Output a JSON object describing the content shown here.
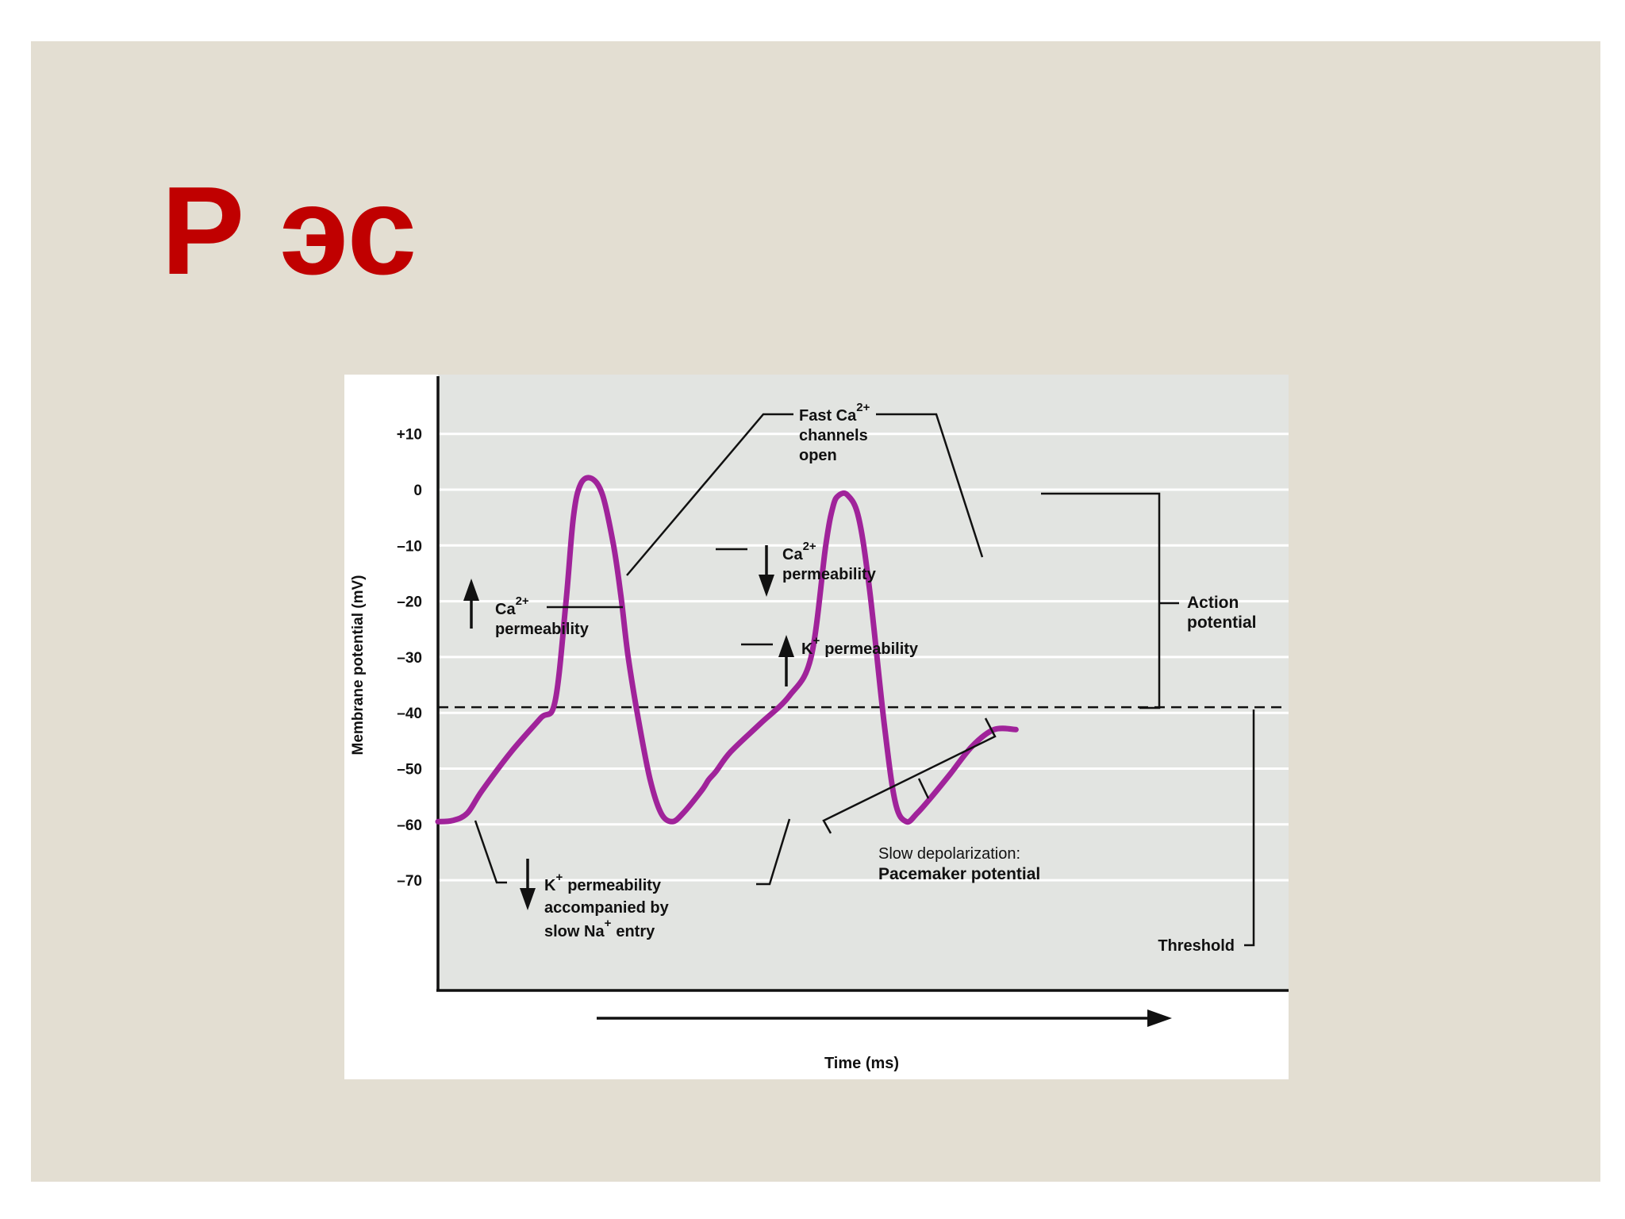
{
  "slide": {
    "title": "Р эс",
    "background": "#e3ded2",
    "title_color": "#c00000"
  },
  "chart_data": {
    "type": "line",
    "ylabel": "Membrane potential (mV)",
    "xlabel": "Time (ms)",
    "ylim": [
      -90,
      22
    ],
    "xlim": [
      0,
      1000
    ],
    "yticks": [
      {
        "value": 10,
        "label": "+10"
      },
      {
        "value": 0,
        "label": "0"
      },
      {
        "value": -10,
        "label": "–10"
      },
      {
        "value": -20,
        "label": "–20"
      },
      {
        "value": -30,
        "label": "–30"
      },
      {
        "value": -40,
        "label": "–40"
      },
      {
        "value": -50,
        "label": "–50"
      },
      {
        "value": -60,
        "label": "–60"
      },
      {
        "value": -70,
        "label": "–70"
      }
    ],
    "threshold": -39,
    "line_color": "#a0239a",
    "series": [
      {
        "x": [
          0,
          20,
          40,
          60,
          100,
          140,
          160,
          175,
          185,
          195,
          210,
          225,
          240,
          250,
          260,
          275,
          290,
          305,
          320,
          335,
          360,
          370,
          380,
          400,
          440,
          480,
          510,
          530,
          540,
          548,
          560,
          575,
          590,
          610,
          625,
          640,
          655,
          675,
          700,
          730,
          760,
          790
        ],
        "y": [
          -59.5,
          -59.3,
          -58,
          -54,
          -47,
          -41,
          -38,
          -20,
          -5,
          1,
          2,
          -1,
          -10,
          -19,
          -30,
          -42,
          -52,
          -58,
          -59.5,
          -58,
          -54,
          -52,
          -50.5,
          -47,
          -42,
          -37,
          -30,
          -10,
          -3,
          -1,
          -1,
          -5,
          -18,
          -42,
          -56,
          -59.5,
          -58,
          -55,
          -51,
          -46,
          -43,
          -43
        ]
      }
    ],
    "annotations": {
      "fast_ca": {
        "l1": "Fast Ca",
        "sup": "2+",
        "l2": "channels",
        "l3": "open"
      },
      "ca_down": {
        "ion": "Ca",
        "sup": "2+",
        "text": "permeability"
      },
      "ca_up": {
        "ion": "Ca",
        "sup": "2+",
        "text": "permeability"
      },
      "k_up": {
        "ion": "K",
        "sup": "+",
        "text": "permeability"
      },
      "k_down": {
        "ion": "K",
        "sup": "+",
        "l1": "permeability",
        "l2": "accompanied by",
        "l3a": "slow Na",
        "sup2": "+",
        "l3b": "entry"
      },
      "action": {
        "l1": "Action",
        "l2": "potential"
      },
      "slow_dep": {
        "l1": "Slow depolarization:",
        "l2": "Pacemaker potential"
      },
      "threshold": "Threshold"
    }
  }
}
